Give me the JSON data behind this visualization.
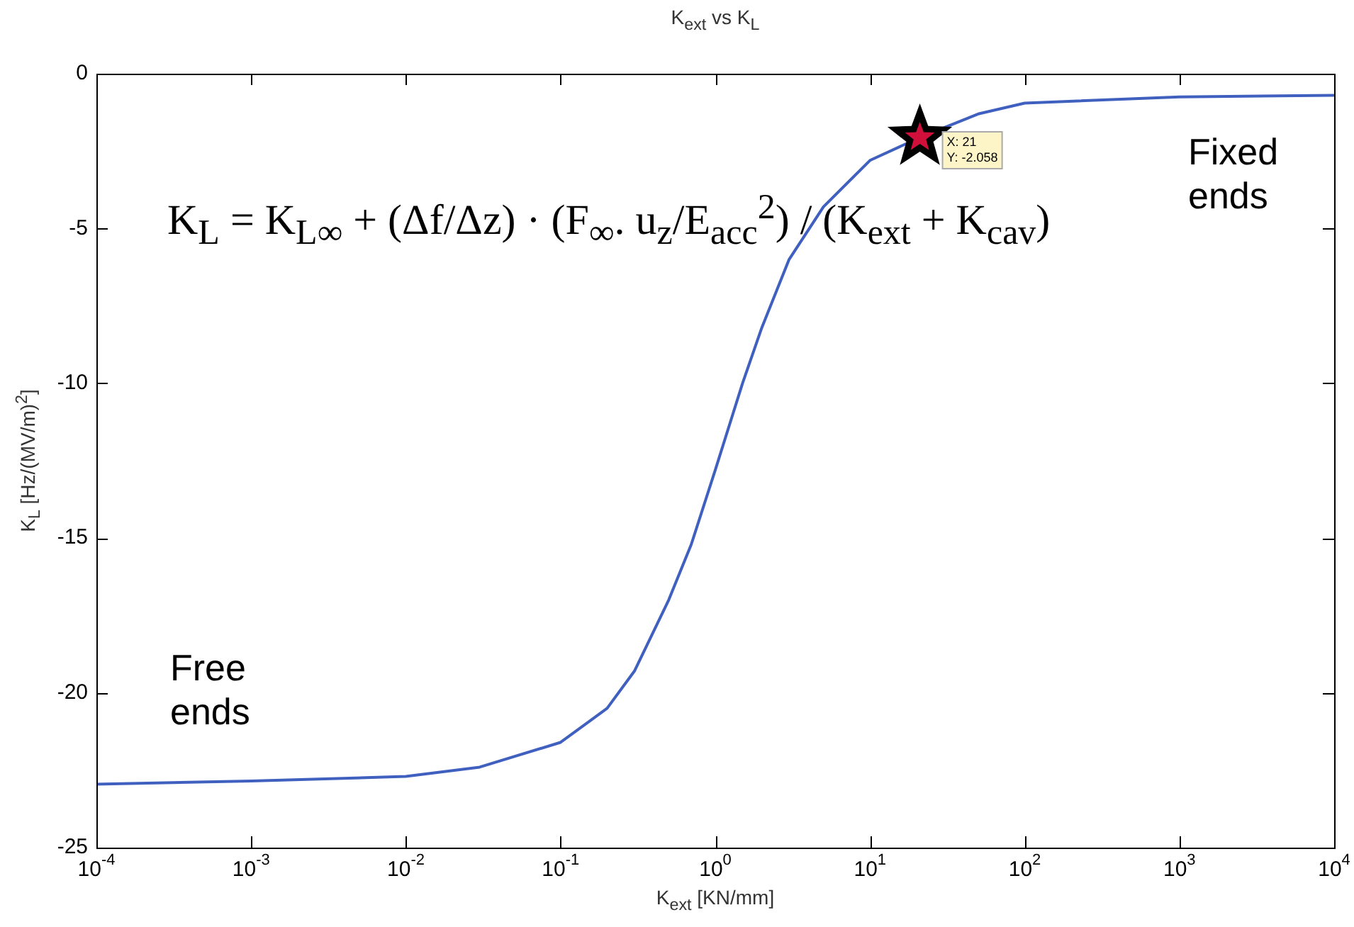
{
  "chart_data": {
    "type": "line",
    "title": "K$_{ext}$ vs K$_{L}$",
    "xlabel": "K$_{ext}$ [KN/mm]",
    "ylabel": "K$_{L}$ [Hz/(MV/m)$^{2}$]",
    "log": "x",
    "grid": false,
    "legend": false,
    "marker": "none",
    "line_style": "solid",
    "xlim": [
      0.0001,
      10000
    ],
    "xticks": [
      {
        "value": 0.0001,
        "label": "10$^{-4}$"
      },
      {
        "value": 0.001,
        "label": "10$^{-3}$"
      },
      {
        "value": 0.01,
        "label": "10$^{-2}$"
      },
      {
        "value": 0.1,
        "label": "10$^{-1}$"
      },
      {
        "value": 1,
        "label": "10$^{0}$"
      },
      {
        "value": 10,
        "label": "10$^{1}$"
      },
      {
        "value": 100,
        "label": "10$^{2}$"
      },
      {
        "value": 1000,
        "label": "10$^{3}$"
      },
      {
        "value": 10000,
        "label": "10$^{4}$"
      }
    ],
    "ylim": [
      -25,
      0
    ],
    "yticks": [
      -25,
      -20,
      -15,
      -10,
      -5,
      0
    ],
    "series": [
      {
        "color": "#4060bf",
        "x": [
          0.0001,
          0.001,
          0.01,
          0.03,
          0.1,
          0.2,
          0.3,
          0.5,
          0.7,
          1,
          1.5,
          2,
          3,
          5,
          10,
          21,
          50,
          100,
          1000,
          10000
        ],
        "values": [
          -22.95,
          -22.85,
          -22.7,
          -22.4,
          -21.6,
          -20.5,
          -19.3,
          -17,
          -15.2,
          -12.8,
          -10,
          -8.2,
          -6,
          -4.3,
          -2.8,
          -2.058,
          -1.3,
          -0.95,
          -0.75,
          -0.7
        ]
      },
      {
        "type": "scatter",
        "marker": "star",
        "color": "#d0103a",
        "x": [
          21
        ],
        "values": [
          -2.058
        ]
      }
    ],
    "annotations": [
      "K$_{L}$ = K$_{L∞}$ + (Δf/Δz) · (F$_{∞}$. u$_{z}$/E$_{acc}$$^{2}$) / (K$_{ext}$ + K$_{cav}$)",
      "Fixed\nends",
      "Free\nends",
      {
        "text": "X: 21\nY: -2.058",
        "x": 21,
        "y": -2.058
      }
    ]
  }
}
